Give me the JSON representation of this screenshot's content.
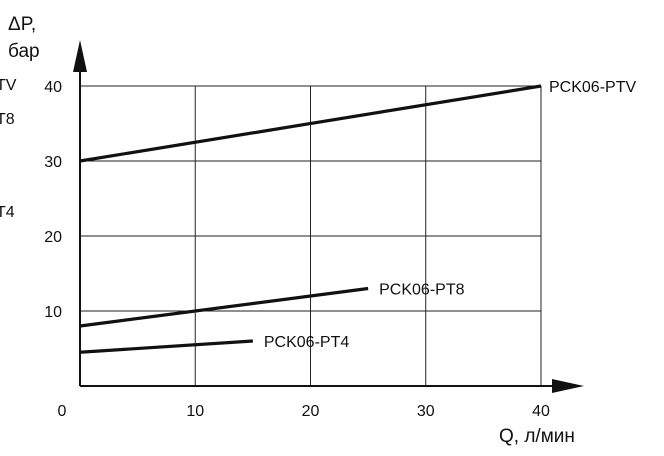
{
  "chart_data": {
    "type": "line",
    "title": "",
    "xlabel": "Q, л/мин",
    "ylabel_line1": "ΔP,",
    "ylabel_line2": "бар",
    "xlim": [
      0,
      40
    ],
    "ylim": [
      0,
      40
    ],
    "x_ticks": [
      0,
      10,
      20,
      30,
      40
    ],
    "y_ticks": [
      10,
      20,
      30,
      40
    ],
    "x_tick_labels": [
      "0",
      "10",
      "20",
      "30",
      "40"
    ],
    "y_tick_labels": [
      "10",
      "20",
      "30",
      "40"
    ],
    "grid": true,
    "series": [
      {
        "name": "PCK06-PTV",
        "x": [
          0,
          40
        ],
        "y": [
          30,
          40
        ]
      },
      {
        "name": "PCK06-PT8",
        "x": [
          0,
          25
        ],
        "y": [
          8,
          13
        ]
      },
      {
        "name": "PCK06-PT4",
        "x": [
          0,
          15
        ],
        "y": [
          4.5,
          6
        ]
      }
    ],
    "cropped_left_fragments": [
      "TV",
      "T8",
      "T4"
    ]
  },
  "colors": {
    "line": "#111111",
    "grid": "#222222",
    "background": "#ffffff"
  }
}
